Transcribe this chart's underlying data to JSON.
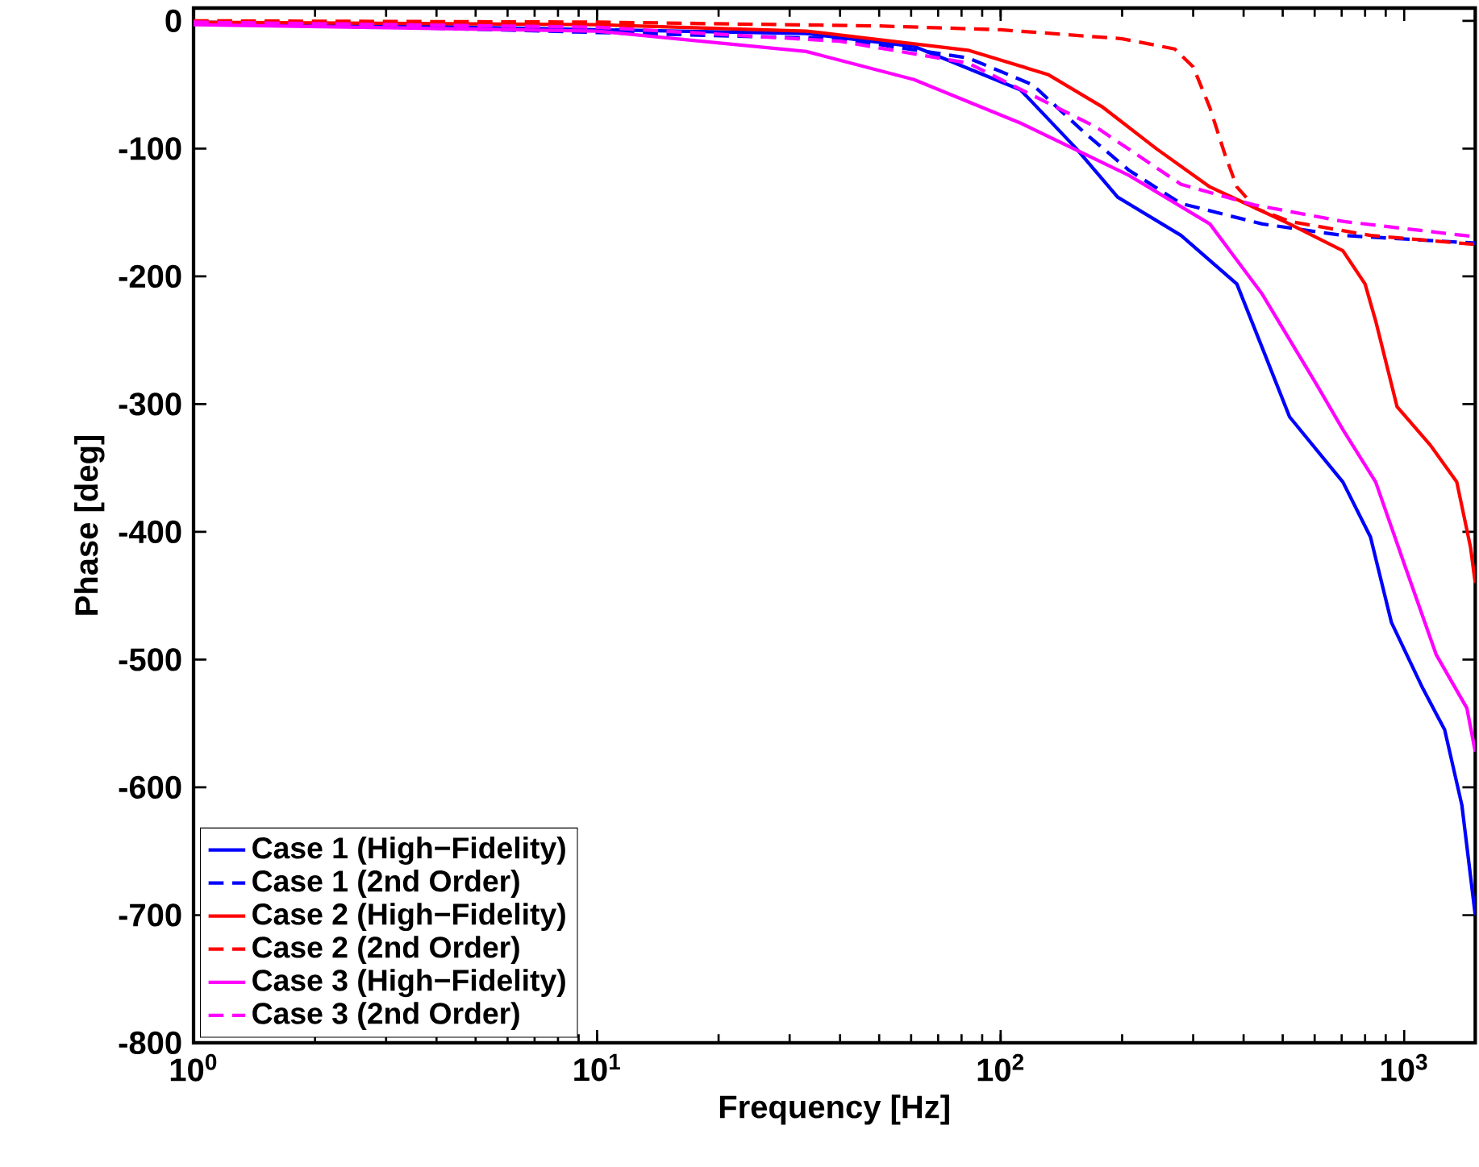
{
  "chart_data": {
    "type": "line",
    "xlabel": "Frequency [Hz]",
    "ylabel": "Phase [deg]",
    "log": "x",
    "xlim": [
      1,
      1500
    ],
    "ylim": [
      -800,
      10
    ],
    "xticks": [
      {
        "value": 1,
        "label": "10$^{0}$"
      },
      {
        "value": 10,
        "label": "10$^{1}$"
      },
      {
        "value": 100,
        "label": "10$^{2}$"
      },
      {
        "value": 1000,
        "label": "10$^{3}$"
      }
    ],
    "yticks": [
      -800,
      -700,
      -600,
      -500,
      -400,
      -300,
      -200,
      -100,
      0
    ],
    "grid": false,
    "legend": "bottom left",
    "series": [
      {
        "name": "Case 1 (High−Fidelity)",
        "color": "#0000ff",
        "line_style": "solid",
        "x": [
          1,
          10,
          33,
          61,
          112,
          154,
          195,
          280,
          385,
          445,
          520,
          705,
          825,
          930,
          1110,
          1260,
          1390,
          1500
        ],
        "values": [
          -1,
          null,
          -10,
          -20,
          -54,
          -100,
          -138,
          -168,
          -206,
          -256,
          -310,
          -361,
          -404,
          -471,
          -522,
          -555,
          -614,
          -700
        ]
      },
      {
        "name": "Case 1 (2nd Order)",
        "color": "#0000ff",
        "line_style": "dashed",
        "x": [
          1,
          10,
          40,
          83,
          120,
          162,
          208,
          280,
          445,
          705,
          1500
        ],
        "values": [
          -1,
          null,
          -14,
          -29,
          -50,
          -88,
          -117,
          -143,
          -159,
          -168,
          -174
        ]
      },
      {
        "name": "Case 2 (High−Fidelity)",
        "color": "#ff0000",
        "line_style": "solid",
        "x": [
          1,
          10,
          33,
          83,
          131,
          178,
          243,
          330,
          520,
          705,
          800,
          850,
          960,
          1160,
          1350,
          1460,
          1500
        ],
        "values": [
          -1,
          -3,
          -8,
          -23,
          -42,
          -67,
          -100,
          -130,
          -159,
          -180,
          -206,
          -235,
          -302,
          -332,
          -361,
          -412,
          -440
        ]
      },
      {
        "name": "Case 2 (2nd Order)",
        "color": "#ff0000",
        "line_style": "dashed",
        "x": [
          1,
          10,
          50,
          100,
          200,
          270,
          300,
          330,
          360,
          385,
          430,
          520,
          826,
          1500
        ],
        "values": [
          0,
          -1,
          -4,
          -7,
          -14,
          -22,
          -36,
          -68,
          -105,
          -130,
          -147,
          -157,
          -168,
          -175
        ]
      },
      {
        "name": "Case 3 (High−Fidelity)",
        "color": "#ff00ff",
        "line_style": "solid",
        "x": [
          1,
          10,
          33,
          61,
          112,
          208,
          330,
          445,
          610,
          705,
          850,
          1000,
          1200,
          1430,
          1500
        ],
        "values": [
          -3,
          -8,
          -24,
          -46,
          -80,
          -121,
          -159,
          -214,
          -286,
          -320,
          -361,
          -425,
          -496,
          -538,
          -572
        ]
      },
      {
        "name": "Case 3 (2nd Order)",
        "color": "#ff00ff",
        "line_style": "dashed",
        "x": [
          1,
          10,
          40,
          83,
          172,
          280,
          424,
          705,
          1500
        ],
        "values": [
          -1,
          -5,
          -16,
          -33,
          -83,
          -128,
          -144,
          -157,
          -169
        ]
      }
    ]
  }
}
